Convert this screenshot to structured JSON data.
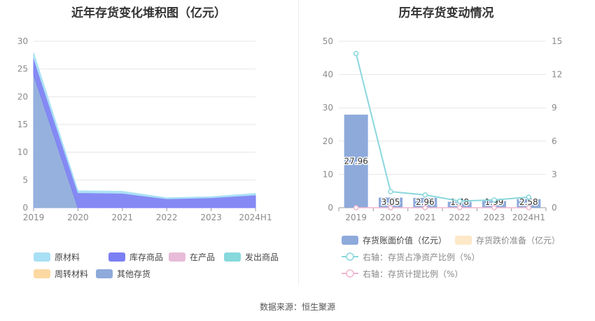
{
  "titles": {
    "left": "近年存货变化堆积图（亿元）",
    "right": "历年存货变动情况"
  },
  "source": "数据来源：恒生聚源",
  "colors": {
    "raw": "#a8e0f5",
    "finished": "#7b7ff3",
    "wip": "#e8bcd8",
    "shipped": "#87d9dc",
    "turnover": "#fcd9a2",
    "other": "#8eaadb",
    "bar": "#8eaadb",
    "impair": "#fde8c8",
    "ratio_line": "#8ad7dd",
    "provision_line": "#f0b6d0",
    "grid": "#e6e6e6",
    "axis_text": "#8a8a8a",
    "axis_line": "#999999"
  },
  "chart_data": [
    {
      "type": "area",
      "stacked": true,
      "title": "近年存货变化堆积图（亿元）",
      "categories": [
        "2019",
        "2020",
        "2021",
        "2022",
        "2023",
        "2024H1"
      ],
      "ylim": [
        0,
        30
      ],
      "yticks": [
        "0",
        "5",
        "10",
        "15",
        "20",
        "25",
        "30"
      ],
      "grid": true,
      "legend_position": "bottom",
      "series": [
        {
          "name": "其他存货",
          "key": "other",
          "values": [
            24.0,
            0,
            0,
            0,
            0,
            0
          ]
        },
        {
          "name": "库存商品",
          "key": "finished",
          "values": [
            3.0,
            2.7,
            2.6,
            1.6,
            1.8,
            2.3
          ]
        },
        {
          "name": "原材料",
          "key": "raw",
          "values": [
            0.96,
            0.35,
            0.36,
            0.18,
            0.19,
            0.28
          ]
        },
        {
          "name": "在产品",
          "key": "wip",
          "values": [
            0,
            0,
            0,
            0,
            0,
            0
          ]
        },
        {
          "name": "发出商品",
          "key": "shipped",
          "values": [
            0,
            0,
            0,
            0,
            0,
            0
          ]
        },
        {
          "name": "周转材料",
          "key": "turnover",
          "values": [
            0,
            0,
            0,
            0,
            0,
            0
          ]
        }
      ],
      "legend": [
        {
          "name": "原材料",
          "key": "raw"
        },
        {
          "name": "库存商品",
          "key": "finished"
        },
        {
          "name": "在产品",
          "key": "wip"
        },
        {
          "name": "发出商品",
          "key": "shipped"
        },
        {
          "name": "周转材料",
          "key": "turnover"
        },
        {
          "name": "其他存货",
          "key": "other"
        }
      ]
    },
    {
      "type": "bar",
      "title": "历年存货变动情况",
      "categories": [
        "2019",
        "2020",
        "2021",
        "2022",
        "2023",
        "2024H1"
      ],
      "ylim": [
        0,
        50
      ],
      "yticks": [
        "0",
        "10",
        "20",
        "30",
        "40",
        "50"
      ],
      "y2lim": [
        0,
        15
      ],
      "y2ticks": [
        "0",
        "3",
        "6",
        "9",
        "12",
        "15"
      ],
      "grid": true,
      "legend_position": "bottom",
      "series": [
        {
          "name": "存货账面价值（亿元）",
          "axis": "left",
          "kind": "bar",
          "values": [
            27.96,
            3.05,
            2.96,
            1.78,
            1.99,
            2.58
          ],
          "labels": [
            "27.96",
            "3.05",
            "2.96",
            "1.78",
            "1.99",
            "2.58"
          ]
        },
        {
          "name": "存货跌价准备（亿元）",
          "axis": "left",
          "kind": "bar",
          "values": [
            0,
            0,
            0,
            0,
            0,
            0
          ]
        },
        {
          "name": "右轴：存货占净资产比例（%）",
          "axis": "right",
          "kind": "line",
          "values": [
            13.9,
            1.45,
            1.15,
            0.6,
            0.7,
            0.95
          ]
        },
        {
          "name": "右轴：存货计提比例（%）",
          "axis": "right",
          "kind": "line",
          "values": [
            0,
            0,
            0,
            0,
            0,
            0
          ]
        }
      ]
    }
  ]
}
